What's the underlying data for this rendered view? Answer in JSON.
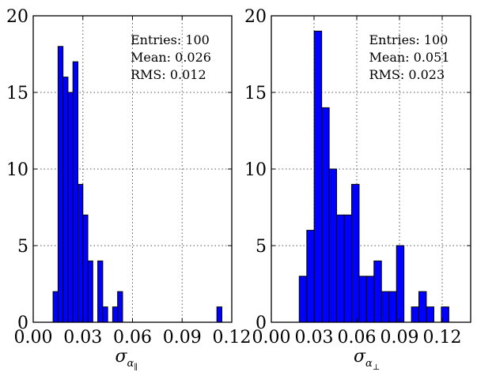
{
  "chart_data": [
    {
      "type": "bar",
      "xlabel": "σ",
      "xlabel_sub": "α",
      "xlabel_subsub": "∥",
      "xlim": [
        0.0,
        0.12
      ],
      "ylim": [
        0,
        20
      ],
      "xticks": [
        "0.00",
        "0.03",
        "0.06",
        "0.09",
        "0.12"
      ],
      "yticks": [
        "0",
        "5",
        "10",
        "15",
        "20"
      ],
      "grid": true,
      "bin_width": 0.003,
      "bins": [
        {
          "x": 0.012,
          "count": 2
        },
        {
          "x": 0.015,
          "count": 18
        },
        {
          "x": 0.018,
          "count": 16
        },
        {
          "x": 0.021,
          "count": 15
        },
        {
          "x": 0.024,
          "count": 17
        },
        {
          "x": 0.027,
          "count": 9
        },
        {
          "x": 0.03,
          "count": 7
        },
        {
          "x": 0.033,
          "count": 4
        },
        {
          "x": 0.039,
          "count": 4
        },
        {
          "x": 0.042,
          "count": 1
        },
        {
          "x": 0.048,
          "count": 1
        },
        {
          "x": 0.051,
          "count": 2
        },
        {
          "x": 0.111,
          "count": 1
        }
      ],
      "stats": {
        "entries": "Entries: 100",
        "mean": "Mean: 0.026",
        "rms": "RMS: 0.012"
      }
    },
    {
      "type": "bar",
      "xlabel": "σ",
      "xlabel_sub": "α",
      "xlabel_subsub": "⊥",
      "xlim": [
        0.0,
        0.14
      ],
      "ylim": [
        0,
        20
      ],
      "xticks": [
        "0.00",
        "0.03",
        "0.06",
        "0.09",
        "0.12"
      ],
      "yticks": [
        "0",
        "5",
        "10",
        "15",
        "20"
      ],
      "grid": true,
      "bin_width": 0.00525,
      "bins": [
        {
          "x": 0.0196,
          "count": 3
        },
        {
          "x": 0.0249,
          "count": 6
        },
        {
          "x": 0.0301,
          "count": 19
        },
        {
          "x": 0.0354,
          "count": 14
        },
        {
          "x": 0.0406,
          "count": 10
        },
        {
          "x": 0.0459,
          "count": 7
        },
        {
          "x": 0.0511,
          "count": 7
        },
        {
          "x": 0.0564,
          "count": 9
        },
        {
          "x": 0.0616,
          "count": 3
        },
        {
          "x": 0.0669,
          "count": 3
        },
        {
          "x": 0.0721,
          "count": 4
        },
        {
          "x": 0.0774,
          "count": 2
        },
        {
          "x": 0.0826,
          "count": 2
        },
        {
          "x": 0.0879,
          "count": 5
        },
        {
          "x": 0.0984,
          "count": 1
        },
        {
          "x": 0.1036,
          "count": 2
        },
        {
          "x": 0.1089,
          "count": 1
        },
        {
          "x": 0.1194,
          "count": 1
        }
      ],
      "stats": {
        "entries": "Entries: 100",
        "mean": "Mean: 0.051",
        "rms": "RMS: 0.023"
      }
    }
  ],
  "colors": {
    "bar_fill": "#0000ff",
    "bar_edge": "#000000",
    "grid": "#555555",
    "frame": "#000000"
  }
}
